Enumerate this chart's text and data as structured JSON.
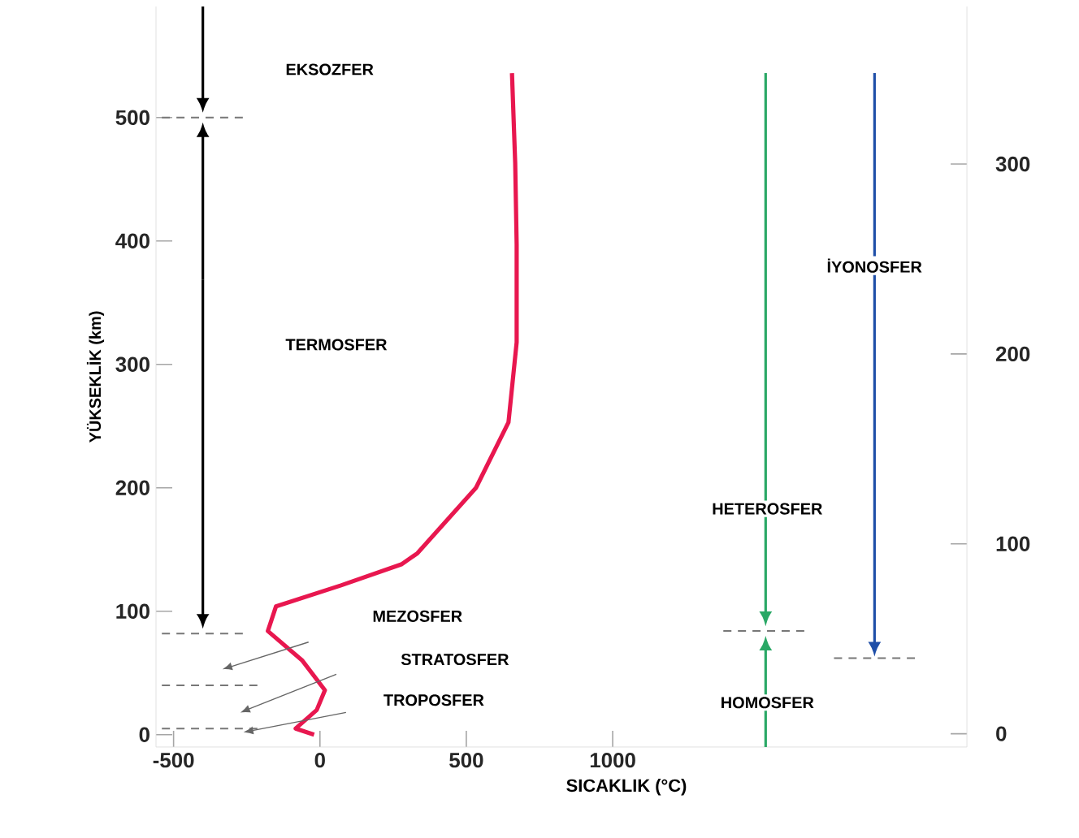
{
  "chart_data": {
    "type": "line",
    "xlabel": "SICAKLIK (°C)",
    "ylabel": "YÜKSEKLİK (km)",
    "xlim": [
      -560,
      2210
    ],
    "ylim": [
      -10,
      590
    ],
    "xticks": [
      -500,
      0,
      500,
      1000
    ],
    "yticks": [
      0,
      100,
      200,
      300,
      400,
      500
    ],
    "y2lim": [
      -7,
      383
    ],
    "y2ticks": [
      0,
      100,
      200,
      300
    ],
    "series": [
      {
        "color": "#e8174f",
        "x": [
          -20,
          -83,
          -11,
          17,
          -60,
          -178,
          -150,
          72,
          278,
          333,
          533,
          644,
          672,
          672,
          667,
          656
        ],
        "values": [
          0,
          5,
          20,
          36,
          60,
          84,
          104,
          121,
          138,
          147,
          200,
          253,
          318,
          397,
          463,
          536
        ]
      },
      {
        "color": "#777777",
        "line_style": "dashed",
        "x": [
          -540,
          -260
        ],
        "values": [
          500,
          500
        ]
      },
      {
        "color": "#777777",
        "line_style": "dashed",
        "x": [
          -540,
          -260
        ],
        "values": [
          82,
          82
        ]
      },
      {
        "color": "#777777",
        "line_style": "dashed",
        "x": [
          -540,
          -200
        ],
        "values": [
          40,
          40
        ]
      },
      {
        "color": "#777777",
        "line_style": "dashed",
        "x": [
          -540,
          -200
        ],
        "values": [
          5,
          5
        ]
      },
      {
        "color": "#777777",
        "line_style": "dashed",
        "x": [
          1378,
          1667
        ],
        "values": [
          84,
          84
        ]
      },
      {
        "color": "#777777",
        "line_style": "dashed",
        "x": [
          1756,
          2033
        ],
        "values": [
          62,
          62
        ]
      }
    ],
    "annotations": [
      "EKSOZFER",
      "TERMOSFER",
      "MEZOSFER",
      "STRATOSFER",
      "TROPOSFER",
      "HETEROSFER",
      "HOMOSFER",
      "İYONOSFER"
    ]
  }
}
